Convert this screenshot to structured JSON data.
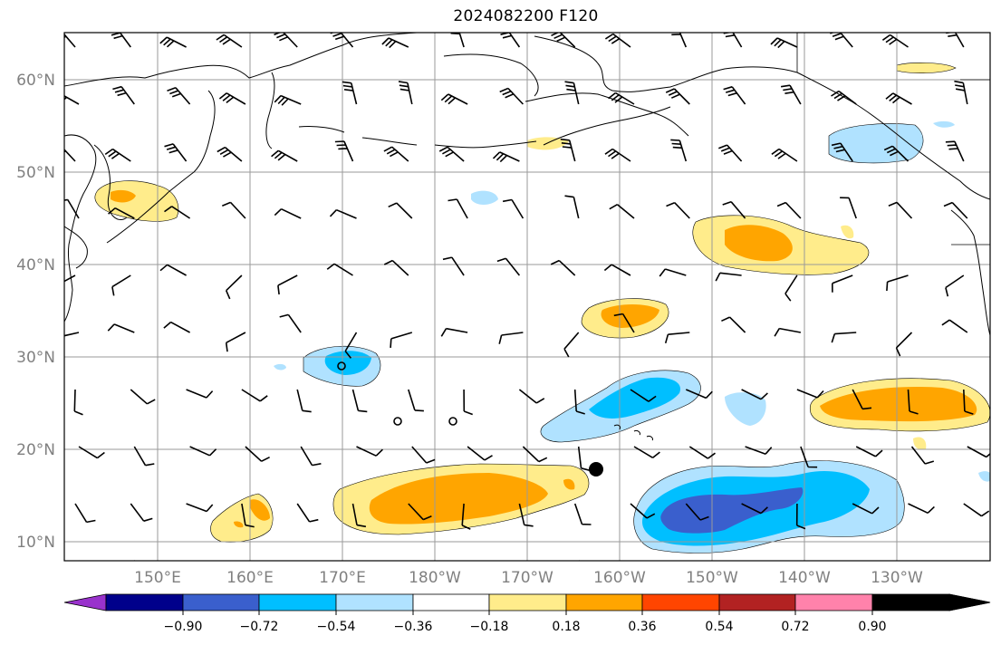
{
  "title": "2024082200 F120",
  "map": {
    "lat_labels": [
      "60°N",
      "50°N",
      "40°N",
      "30°N",
      "20°N",
      "10°N"
    ],
    "lon_labels": [
      "150°E",
      "160°E",
      "170°E",
      "180°W",
      "170°W",
      "160°W",
      "150°W",
      "140°W",
      "130°W"
    ],
    "label_color": "#808080",
    "grid": true,
    "marker_color": "#000000"
  },
  "colorbar": {
    "tick_labels": [
      "−0.90",
      "−0.72",
      "−0.54",
      "−0.36",
      "−0.18",
      "0.18",
      "0.36",
      "0.54",
      "0.72",
      "0.90"
    ],
    "colors": [
      "#9932cc",
      "#00008b",
      "#3a5fcd",
      "#00bfff",
      "#b0e2ff",
      "#ffffff",
      "#ffec8b",
      "#ffa500",
      "#ff4500",
      "#b22222",
      "#ff82ab"
    ],
    "extend": "both"
  },
  "field_colors": {
    "light_yellow": "#ffec8b",
    "orange": "#ffa500",
    "light_blue": "#b0e2ff",
    "sky_blue": "#00bfff",
    "royal_blue": "#3a5fcd"
  }
}
